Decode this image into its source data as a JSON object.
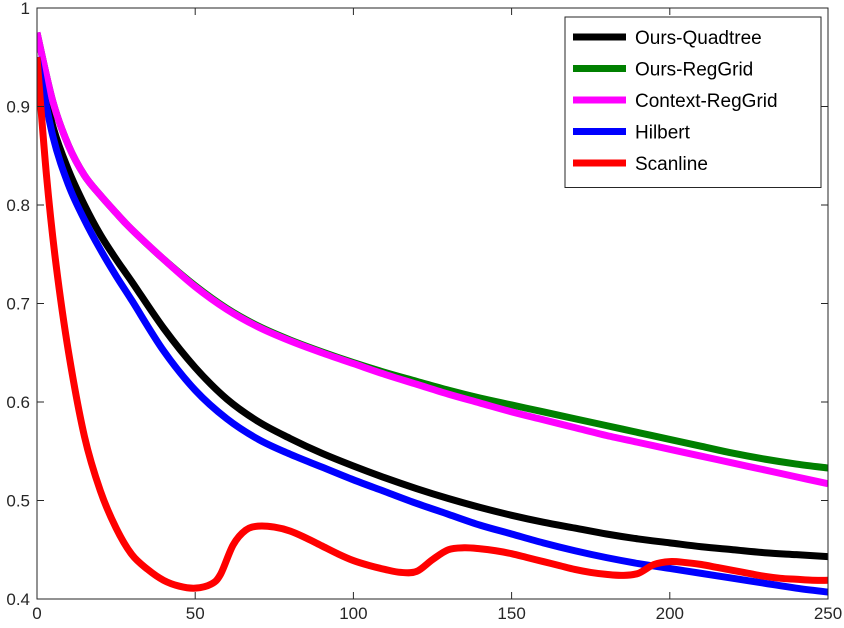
{
  "chart_data": {
    "type": "line",
    "title": "",
    "xlabel": "",
    "ylabel": "",
    "xlim": [
      0,
      250
    ],
    "ylim": [
      0.4,
      1
    ],
    "xticks": [
      0,
      50,
      100,
      150,
      200,
      250
    ],
    "yticks": [
      0.4,
      0.5,
      0.6,
      0.7,
      0.8,
      0.9,
      1
    ],
    "xtick_labels": [
      "0",
      "50",
      "100",
      "150",
      "200",
      "250"
    ],
    "ytick_labels": [
      "0.4",
      "0.5",
      "0.6",
      "0.7",
      "0.8",
      "0.9",
      "1"
    ],
    "grid": false,
    "legend_position": "top-right",
    "series": [
      {
        "name": "Ours-Quadtree",
        "color": "#000000",
        "x": [
          0,
          5,
          10,
          15,
          20,
          25,
          30,
          40,
          50,
          60,
          70,
          80,
          90,
          100,
          110,
          120,
          130,
          140,
          150,
          160,
          170,
          180,
          190,
          200,
          210,
          220,
          230,
          240,
          250
        ],
        "y": [
          0.95,
          0.88,
          0.835,
          0.8,
          0.77,
          0.745,
          0.722,
          0.675,
          0.635,
          0.603,
          0.58,
          0.563,
          0.548,
          0.535,
          0.523,
          0.512,
          0.502,
          0.493,
          0.485,
          0.478,
          0.472,
          0.466,
          0.461,
          0.457,
          0.453,
          0.45,
          0.447,
          0.445,
          0.443
        ]
      },
      {
        "name": "Ours-RegGrid",
        "color": "#008000",
        "x": [
          0,
          5,
          10,
          15,
          20,
          25,
          30,
          40,
          50,
          60,
          70,
          80,
          90,
          100,
          110,
          120,
          130,
          140,
          150,
          160,
          170,
          180,
          190,
          200,
          210,
          220,
          230,
          240,
          250
        ],
        "y": [
          0.975,
          0.905,
          0.86,
          0.83,
          0.81,
          0.792,
          0.775,
          0.745,
          0.718,
          0.695,
          0.677,
          0.663,
          0.651,
          0.64,
          0.63,
          0.621,
          0.612,
          0.604,
          0.597,
          0.59,
          0.583,
          0.576,
          0.569,
          0.562,
          0.555,
          0.548,
          0.542,
          0.537,
          0.533
        ]
      },
      {
        "name": "Context-RegGrid",
        "color": "#ff00ff",
        "x": [
          0,
          5,
          10,
          15,
          20,
          25,
          30,
          40,
          50,
          60,
          70,
          80,
          90,
          100,
          110,
          120,
          130,
          140,
          150,
          160,
          170,
          180,
          190,
          200,
          210,
          220,
          230,
          240,
          250
        ],
        "y": [
          0.975,
          0.905,
          0.86,
          0.83,
          0.81,
          0.792,
          0.775,
          0.745,
          0.717,
          0.694,
          0.676,
          0.662,
          0.65,
          0.639,
          0.628,
          0.618,
          0.608,
          0.599,
          0.59,
          0.582,
          0.574,
          0.566,
          0.559,
          0.552,
          0.545,
          0.538,
          0.531,
          0.524,
          0.517
        ]
      },
      {
        "name": "Hilbert",
        "color": "#0000ff",
        "x": [
          0,
          5,
          10,
          15,
          20,
          25,
          30,
          40,
          50,
          60,
          70,
          80,
          90,
          100,
          110,
          120,
          130,
          140,
          150,
          160,
          170,
          180,
          190,
          200,
          210,
          220,
          230,
          240,
          250
        ],
        "y": [
          0.95,
          0.87,
          0.82,
          0.785,
          0.755,
          0.728,
          0.703,
          0.652,
          0.612,
          0.583,
          0.562,
          0.547,
          0.534,
          0.521,
          0.509,
          0.497,
          0.486,
          0.475,
          0.466,
          0.457,
          0.449,
          0.442,
          0.436,
          0.431,
          0.426,
          0.421,
          0.416,
          0.411,
          0.407
        ]
      },
      {
        "name": "Scanline",
        "color": "#ff0000",
        "x": [
          0,
          3,
          6,
          10,
          15,
          20,
          25,
          30,
          35,
          40,
          45,
          50,
          55,
          58,
          62,
          66,
          70,
          75,
          80,
          85,
          90,
          95,
          100,
          105,
          110,
          115,
          120,
          125,
          130,
          135,
          140,
          145,
          150,
          155,
          160,
          165,
          170,
          175,
          180,
          185,
          190,
          195,
          200,
          205,
          210,
          215,
          220,
          225,
          230,
          235,
          240,
          245,
          250
        ],
        "y": [
          0.95,
          0.83,
          0.74,
          0.65,
          0.565,
          0.51,
          0.472,
          0.445,
          0.43,
          0.419,
          0.413,
          0.411,
          0.415,
          0.425,
          0.455,
          0.47,
          0.474,
          0.473,
          0.469,
          0.462,
          0.454,
          0.446,
          0.439,
          0.434,
          0.43,
          0.427,
          0.428,
          0.44,
          0.45,
          0.452,
          0.451,
          0.449,
          0.446,
          0.442,
          0.438,
          0.434,
          0.43,
          0.427,
          0.425,
          0.424,
          0.426,
          0.435,
          0.438,
          0.437,
          0.435,
          0.432,
          0.429,
          0.426,
          0.423,
          0.421,
          0.42,
          0.419,
          0.419
        ]
      }
    ]
  }
}
